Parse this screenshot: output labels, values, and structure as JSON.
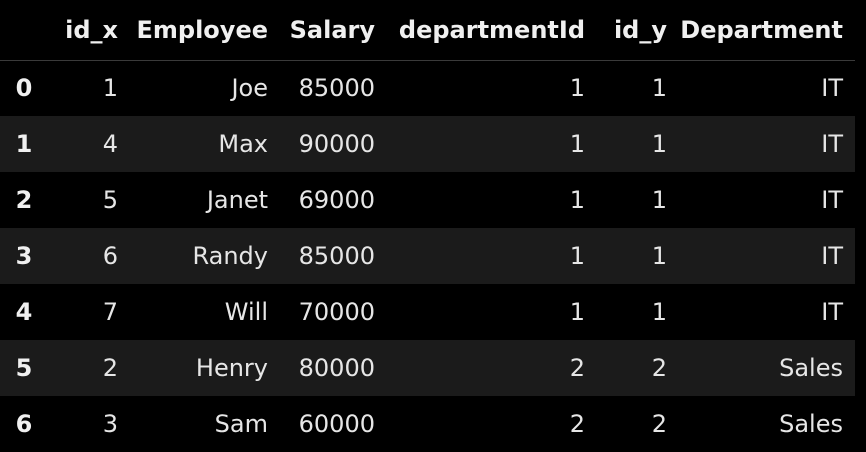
{
  "table": {
    "index_header": "",
    "columns": [
      "id_x",
      "Employee",
      "Salary",
      "departmentId",
      "id_y",
      "Department"
    ],
    "rows": [
      {
        "index": "0",
        "id_x": "1",
        "Employee": "Joe",
        "Salary": "85000",
        "departmentId": "1",
        "id_y": "1",
        "Department": "IT"
      },
      {
        "index": "1",
        "id_x": "4",
        "Employee": "Max",
        "Salary": "90000",
        "departmentId": "1",
        "id_y": "1",
        "Department": "IT"
      },
      {
        "index": "2",
        "id_x": "5",
        "Employee": "Janet",
        "Salary": "69000",
        "departmentId": "1",
        "id_y": "1",
        "Department": "IT"
      },
      {
        "index": "3",
        "id_x": "6",
        "Employee": "Randy",
        "Salary": "85000",
        "departmentId": "1",
        "id_y": "1",
        "Department": "IT"
      },
      {
        "index": "4",
        "id_x": "7",
        "Employee": "Will",
        "Salary": "70000",
        "departmentId": "1",
        "id_y": "1",
        "Department": "IT"
      },
      {
        "index": "5",
        "id_x": "2",
        "Employee": "Henry",
        "Salary": "80000",
        "departmentId": "2",
        "id_y": "2",
        "Department": "Sales"
      },
      {
        "index": "6",
        "id_x": "3",
        "Employee": "Sam",
        "Salary": "60000",
        "departmentId": "2",
        "id_y": "2",
        "Department": "Sales"
      }
    ]
  },
  "theme": {
    "background": "#000000",
    "row_stripe": "#1b1b1b",
    "text": "#e6e6e6"
  }
}
